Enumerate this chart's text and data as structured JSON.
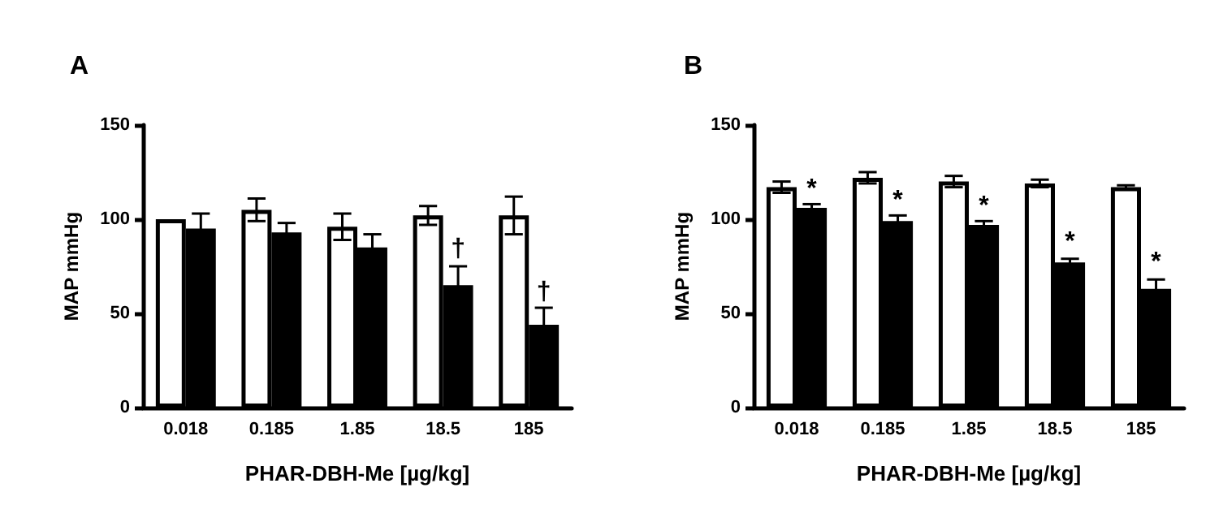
{
  "chart_data": [
    {
      "type": "bar",
      "title": "A",
      "xlabel": "PHAR-DBH-Me [µg/kg]",
      "ylabel": "MAP mmHg",
      "categories": [
        "0.018",
        "0.185",
        "1.85",
        "18.5",
        "185"
      ],
      "ylim": [
        0,
        150
      ],
      "yticks": [
        0,
        50,
        100,
        150
      ],
      "series": [
        {
          "color": "#ffffff",
          "values": [
            100,
            105,
            96,
            102,
            102
          ],
          "errors": [
            null,
            6,
            7,
            5,
            10
          ]
        },
        {
          "color": "#000000",
          "values": [
            95,
            93,
            85,
            65,
            44
          ],
          "errors": [
            8,
            5,
            7,
            10,
            9
          ]
        }
      ],
      "annotations": [
        {
          "text": "†",
          "x": "18.5",
          "y": 84
        },
        {
          "text": "†",
          "x": "185",
          "y": 61
        }
      ]
    },
    {
      "type": "bar",
      "title": "B",
      "xlabel": "PHAR-DBH-Me [µg/kg]",
      "ylabel": "MAP mmHg",
      "categories": [
        "0.018",
        "0.185",
        "1.85",
        "18.5",
        "185"
      ],
      "ylim": [
        0,
        150
      ],
      "yticks": [
        0,
        50,
        100,
        150
      ],
      "series": [
        {
          "color": "#ffffff",
          "values": [
            117,
            122,
            120,
            119,
            117
          ],
          "errors": [
            3,
            3,
            3,
            2,
            1
          ]
        },
        {
          "color": "#000000",
          "values": [
            106,
            99,
            97,
            77,
            63
          ],
          "errors": [
            2,
            3,
            2,
            2,
            5
          ]
        }
      ],
      "annotations": [
        {
          "text": "*",
          "x": "0.018",
          "y": 116
        },
        {
          "text": "*",
          "x": "0.185",
          "y": 110
        },
        {
          "text": "*",
          "x": "1.85",
          "y": 107
        },
        {
          "text": "*",
          "x": "18.5",
          "y": 88
        },
        {
          "text": "*",
          "x": "185",
          "y": 77
        }
      ]
    }
  ]
}
